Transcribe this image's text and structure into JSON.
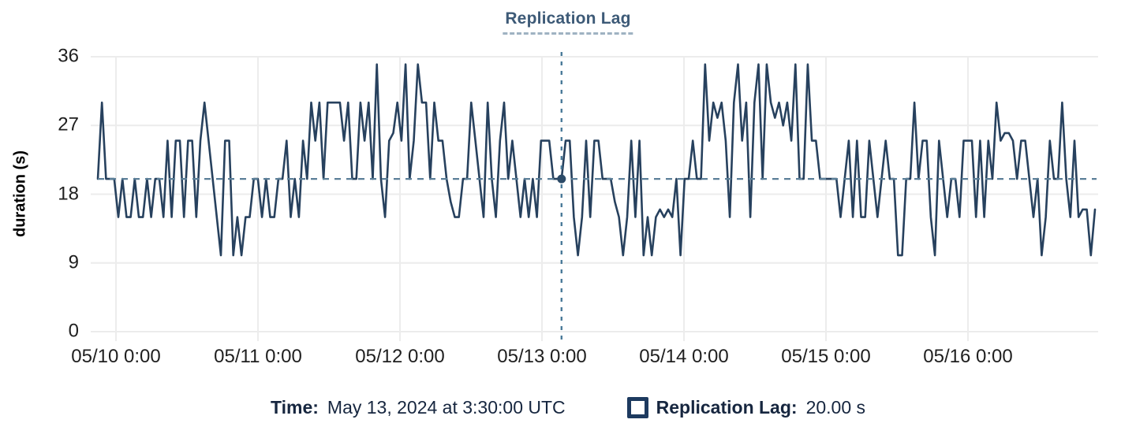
{
  "chart": {
    "title": "Replication Lag",
    "ylabel": "duration (s)"
  },
  "readout": {
    "time_label": "Time:",
    "time_value": "May 13, 2024 at 3:30:00 UTC",
    "series_label": "Replication Lag:",
    "series_value": "20.00 s"
  },
  "colors": {
    "line": "#27415e",
    "threshold": "#5b7f98",
    "crosshair": "#4a7a99",
    "marker": "#2c4a67",
    "grid": "#ececec",
    "title": "#3d5a77",
    "tick_text": "#1f1f1f",
    "readout_text": "#16263f"
  },
  "chart_data": {
    "type": "line",
    "title": "Replication Lag",
    "xlabel": "",
    "ylabel": "duration (s)",
    "ylim": [
      0,
      36
    ],
    "yticks": [
      36,
      27,
      18,
      9,
      0
    ],
    "xticks": [
      "05/10 0:00",
      "05/11 0:00",
      "05/12 0:00",
      "05/13 0:00",
      "05/14 0:00",
      "05/15 0:00",
      "05/16 0:00"
    ],
    "grid": true,
    "legend_position": "bottom",
    "threshold": {
      "value": 20,
      "style": "dashed"
    },
    "crosshair": {
      "index": 113,
      "time": "May 13, 2024 at 3:30:00 UTC",
      "value": 20,
      "value_text": "20.00 s"
    },
    "series": [
      {
        "name": "Replication Lag",
        "unit": "s",
        "values": [
          20,
          30,
          20,
          20,
          20,
          15,
          20,
          15,
          15,
          20,
          15,
          15,
          20,
          15,
          20,
          20,
          15,
          25,
          15,
          25,
          25,
          15,
          25,
          25,
          15,
          25,
          30,
          25,
          20,
          15,
          10,
          25,
          25,
          10,
          15,
          10,
          15,
          15,
          20,
          20,
          15,
          20,
          15,
          15,
          20,
          20,
          25,
          15,
          20,
          15,
          25,
          20,
          30,
          25,
          30,
          20,
          30,
          30,
          30,
          30,
          25,
          30,
          20,
          20,
          30,
          25,
          30,
          20,
          35,
          20,
          15,
          25,
          26,
          30,
          25,
          35,
          20,
          25,
          35,
          30,
          30,
          20,
          30,
          25,
          25,
          20,
          17,
          15,
          15,
          20,
          20,
          30,
          25,
          20,
          15,
          30,
          20,
          15,
          25,
          30,
          20,
          25,
          20,
          15,
          20,
          15,
          20,
          15,
          25,
          25,
          25,
          20,
          20,
          20,
          25,
          25,
          15,
          10,
          15,
          25,
          15,
          25,
          25,
          20,
          20,
          20,
          17,
          15,
          10,
          15,
          25,
          15,
          25,
          10,
          15,
          10,
          15,
          16,
          15,
          16,
          15,
          20,
          10,
          20,
          20,
          25,
          20,
          20,
          35,
          25,
          30,
          28,
          30,
          25,
          15,
          30,
          35,
          25,
          30,
          15,
          30,
          35,
          20,
          35,
          30,
          28,
          30,
          27,
          30,
          25,
          35,
          20,
          20,
          35,
          25,
          25,
          20,
          20,
          20,
          20,
          20,
          15,
          20,
          25,
          15,
          25,
          15,
          15,
          25,
          20,
          15,
          20,
          25,
          20,
          20,
          10,
          10,
          20,
          20,
          30,
          20,
          25,
          25,
          15,
          10,
          25,
          20,
          15,
          20,
          20,
          15,
          25,
          25,
          25,
          15,
          25,
          15,
          25,
          20,
          30,
          25,
          26,
          26,
          25,
          20,
          25,
          25,
          20,
          15,
          20,
          10,
          15,
          25,
          20,
          20,
          30,
          20,
          15,
          25,
          15,
          16,
          16,
          10,
          16
        ]
      }
    ]
  }
}
